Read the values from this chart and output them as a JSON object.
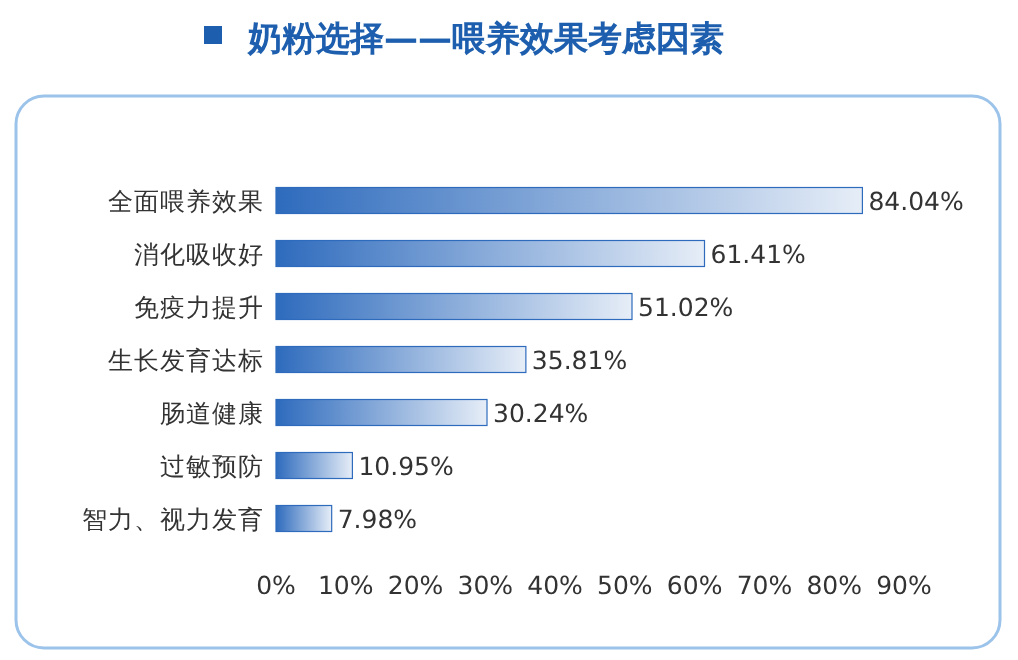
{
  "chart_data": {
    "type": "bar",
    "orientation": "horizontal",
    "title": "奶粉选择——喂养效果考虑因素",
    "categories": [
      "全面喂养效果",
      "消化吸收好",
      "免疫力提升",
      "生长发育达标",
      "肠道健康",
      "过敏预防",
      "智力、视力发育"
    ],
    "values": [
      84.04,
      61.41,
      51.02,
      35.81,
      30.24,
      10.95,
      7.98
    ],
    "value_labels": [
      "84.04%",
      "61.41%",
      "51.02%",
      "35.81%",
      "30.24%",
      "10.95%",
      "7.98%"
    ],
    "color": "#2e6bbd",
    "xlim": [
      0,
      90
    ],
    "xticks": [
      {
        "value": 0,
        "label": "0%"
      },
      {
        "value": 10,
        "label": "10%"
      },
      {
        "value": 20,
        "label": "20%"
      },
      {
        "value": 30,
        "label": "30%"
      },
      {
        "value": 40,
        "label": "40%"
      },
      {
        "value": 50,
        "label": "50%"
      },
      {
        "value": 60,
        "label": "60%"
      },
      {
        "value": 70,
        "label": "70%"
      },
      {
        "value": 80,
        "label": "80%"
      },
      {
        "value": 90,
        "label": "90%"
      }
    ],
    "grid": false
  }
}
